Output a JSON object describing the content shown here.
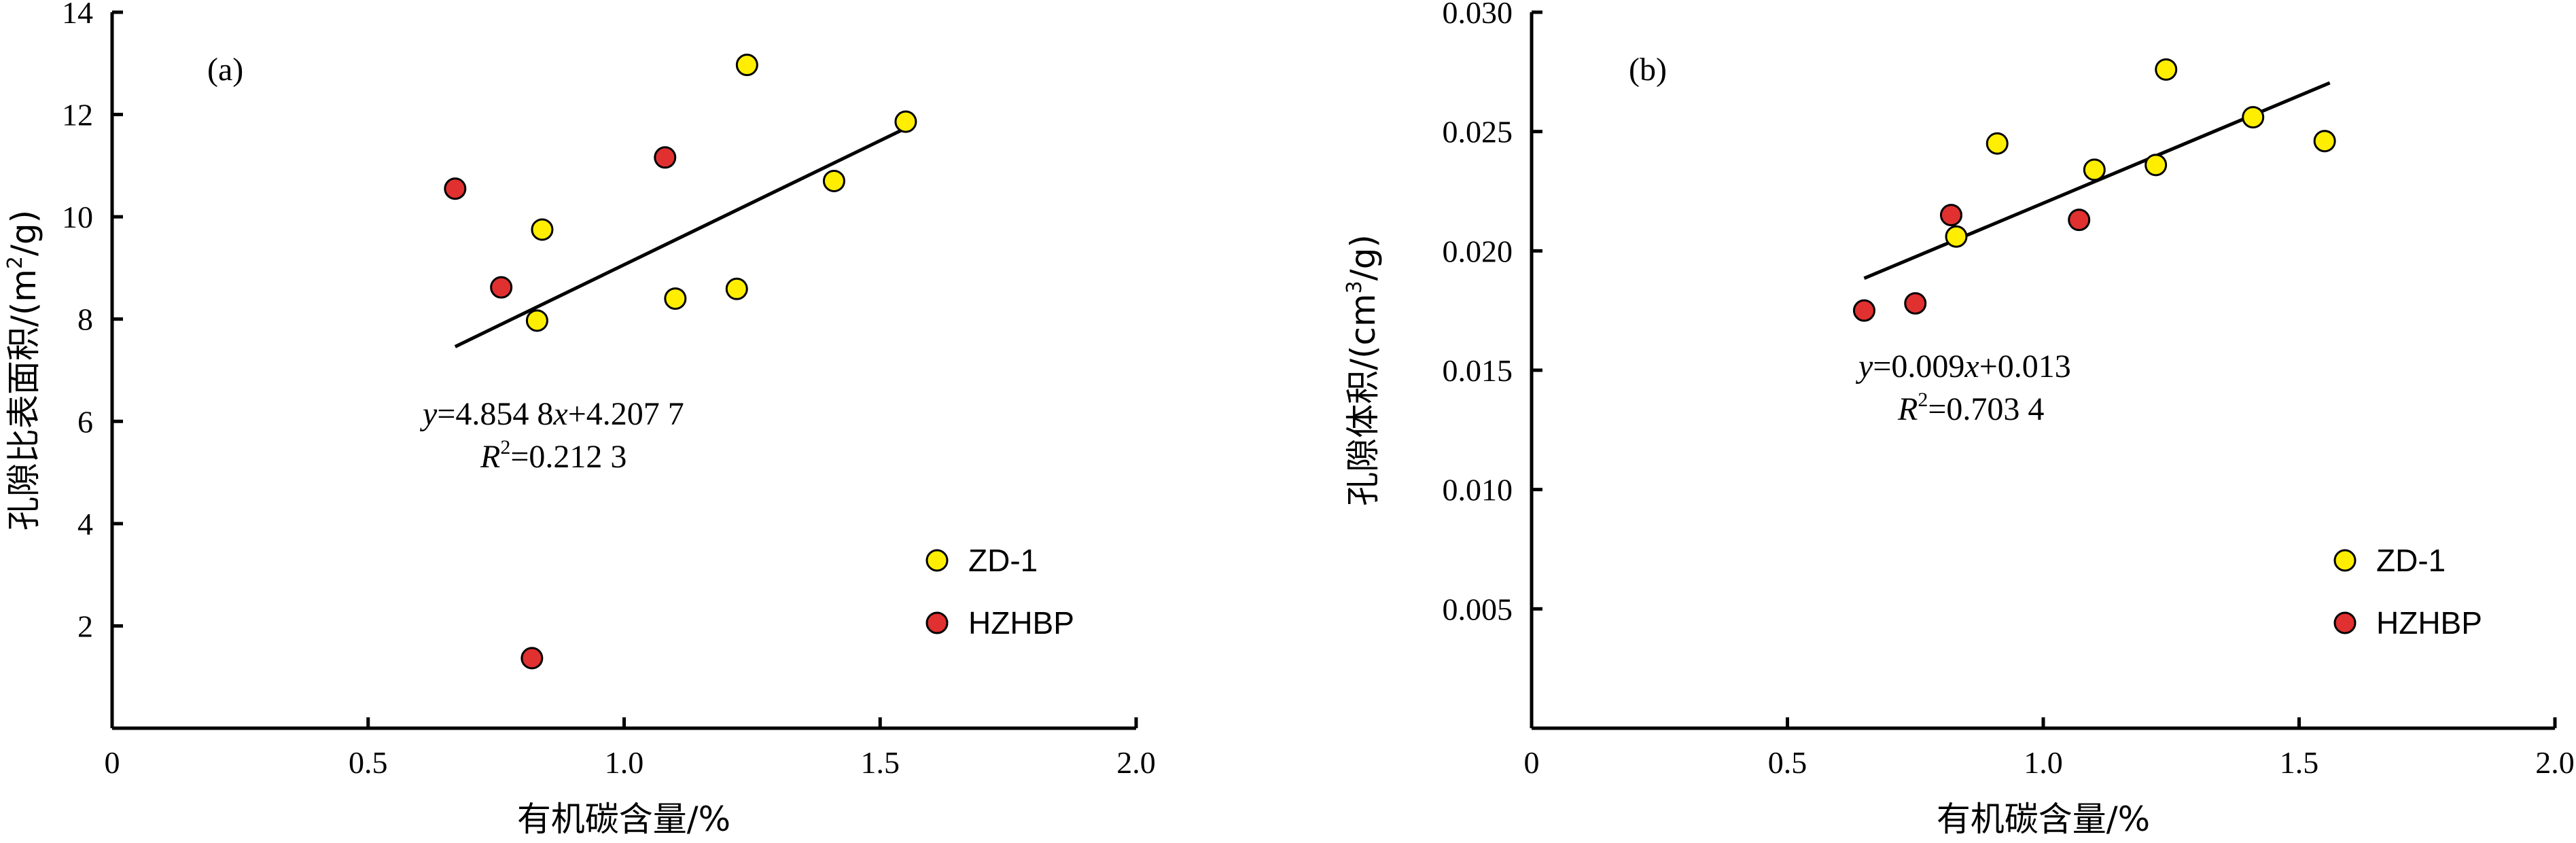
{
  "colors": {
    "ZD-1": "#ffee00",
    "HZHBP": "#e03030"
  },
  "chart_data": [
    {
      "type": "scatter",
      "panel_label": "(a)",
      "xlabel": "有机碳含量/%",
      "ylabel": "孔隙比表面积/(m²/g)",
      "ylabel_parts": {
        "pre": "孔隙比表面积/(m",
        "sup": "2",
        "post": "/g)"
      },
      "xlim": [
        0,
        2.0
      ],
      "ylim": [
        0,
        14
      ],
      "x_ticks": [
        "0",
        "0.5",
        "1.0",
        "1.5",
        "2.0"
      ],
      "x_tick_values": [
        0,
        0.5,
        1.0,
        1.5,
        2.0
      ],
      "y_ticks": [
        "2",
        "4",
        "6",
        "8",
        "10",
        "12",
        "14"
      ],
      "y_tick_values": [
        2,
        4,
        6,
        8,
        10,
        12,
        14
      ],
      "series": [
        {
          "name": "ZD-1",
          "points": [
            [
              0.83,
              7.97
            ],
            [
              0.84,
              9.75
            ],
            [
              1.1,
              8.4
            ],
            [
              1.22,
              8.59
            ],
            [
              1.24,
              12.97
            ],
            [
              1.41,
              10.7
            ],
            [
              1.55,
              11.86
            ]
          ]
        },
        {
          "name": "HZHBP",
          "points": [
            [
              0.67,
              10.55
            ],
            [
              0.76,
              8.62
            ],
            [
              0.82,
              1.37
            ],
            [
              1.08,
              11.16
            ]
          ]
        }
      ],
      "trendline": {
        "x_range": [
          0.67,
          1.55
        ],
        "slope": 4.8548,
        "intercept": 4.2077
      },
      "equation": {
        "y": "y",
        "eq": "=4.854 8",
        "x": "x",
        "rest": "+4.207 7"
      },
      "r2": {
        "r": "R",
        "sup": "2",
        "rest": "=0.212 3"
      },
      "legend": [
        "ZD-1",
        "HZHBP"
      ]
    },
    {
      "type": "scatter",
      "panel_label": "(b)",
      "xlabel": "有机碳含量/%",
      "ylabel": "孔隙体积/(cm³/g)",
      "ylabel_parts": {
        "pre": "孔隙体积/(cm",
        "sup": "3",
        "post": "/g)"
      },
      "xlim": [
        0,
        2.0
      ],
      "ylim": [
        0,
        0.03
      ],
      "x_ticks": [
        "0",
        "0.5",
        "1.0",
        "1.5",
        "2.0"
      ],
      "x_tick_values": [
        0,
        0.5,
        1.0,
        1.5,
        2.0
      ],
      "y_ticks": [
        "0.005",
        "0.010",
        "0.015",
        "0.020",
        "0.025",
        "0.030"
      ],
      "y_tick_values": [
        0.005,
        0.01,
        0.015,
        0.02,
        0.025,
        0.03
      ],
      "series": [
        {
          "name": "ZD-1",
          "points": [
            [
              0.83,
              0.0206
            ],
            [
              0.91,
              0.0245
            ],
            [
              1.1,
              0.0234
            ],
            [
              1.22,
              0.0236
            ],
            [
              1.24,
              0.0276
            ],
            [
              1.41,
              0.0256
            ],
            [
              1.55,
              0.0246
            ]
          ]
        },
        {
          "name": "HZHBP",
          "points": [
            [
              0.65,
              0.0175
            ],
            [
              0.75,
              0.0178
            ],
            [
              0.82,
              0.0215
            ],
            [
              1.07,
              0.0213
            ]
          ]
        }
      ],
      "trendline": {
        "x_range": [
          0.65,
          1.56
        ],
        "slope": 0.009,
        "intercept": 0.013
      },
      "equation": {
        "y": "y",
        "eq": "=0.009",
        "x": "x",
        "rest": "+0.013"
      },
      "r2": {
        "r": "R",
        "sup": "2",
        "rest": "=0.703 4"
      },
      "legend": [
        "ZD-1",
        "HZHBP"
      ]
    }
  ]
}
